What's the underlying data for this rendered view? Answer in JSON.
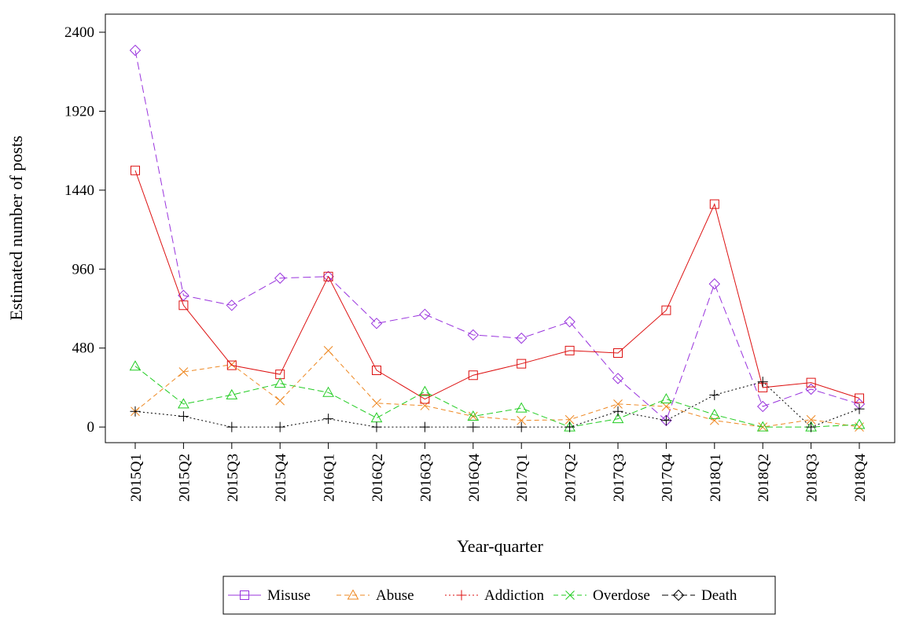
{
  "chart_data": {
    "type": "line",
    "title": "",
    "xlabel": "Year-quarter",
    "ylabel": "Estimated number of posts",
    "categories": [
      "2015Q1",
      "2015Q2",
      "2015Q3",
      "2015Q4",
      "2016Q1",
      "2016Q2",
      "2016Q3",
      "2016Q4",
      "2017Q1",
      "2017Q2",
      "2017Q3",
      "2017Q4",
      "2018Q1",
      "2018Q2",
      "2018Q3",
      "2018Q4"
    ],
    "yticks": [
      0,
      480,
      960,
      1440,
      1920,
      2400
    ],
    "ylim": [
      -95,
      2510
    ],
    "grid": false,
    "legend_position": "bottom",
    "series": [
      {
        "name": "Misuse",
        "color": "#9933dd",
        "dash": "10,5",
        "marker": "diamond",
        "values": [
          2290,
          800,
          740,
          905,
          915,
          630,
          685,
          560,
          540,
          640,
          295,
          40,
          870,
          125,
          230,
          140
        ]
      },
      {
        "name": "Abuse",
        "color": "#ee8822",
        "dash": "6,4",
        "marker": "x",
        "values": [
          95,
          335,
          380,
          160,
          465,
          145,
          130,
          65,
          40,
          45,
          140,
          125,
          40,
          0,
          45,
          0
        ]
      },
      {
        "name": "Addiction",
        "color": "#dd1111",
        "dash": "",
        "marker": "square",
        "values": [
          1560,
          740,
          375,
          320,
          915,
          345,
          170,
          315,
          385,
          465,
          450,
          710,
          1355,
          240,
          270,
          175
        ]
      },
      {
        "name": "Overdose",
        "color": "#22cc22",
        "dash": "8,4",
        "marker": "triangle",
        "values": [
          370,
          140,
          195,
          265,
          210,
          55,
          215,
          65,
          115,
          0,
          50,
          170,
          75,
          0,
          0,
          15
        ]
      },
      {
        "name": "Death",
        "color": "#000000",
        "dash": "2,3",
        "marker": "plus",
        "values": [
          95,
          65,
          0,
          0,
          50,
          0,
          0,
          0,
          0,
          0,
          95,
          40,
          195,
          275,
          0,
          110
        ]
      }
    ],
    "legend": [
      {
        "label": "Misuse",
        "color": "#9933dd",
        "dash": "",
        "marker": "square"
      },
      {
        "label": "Abuse",
        "color": "#ee8822",
        "dash": "6,4",
        "marker": "triangle"
      },
      {
        "label": "Addiction",
        "color": "#dd1111",
        "dash": "2,3",
        "marker": "plus"
      },
      {
        "label": "Overdose",
        "color": "#22cc22",
        "dash": "6,4",
        "marker": "x"
      },
      {
        "label": "Death",
        "color": "#000000",
        "dash": "8,4",
        "marker": "diamond"
      }
    ]
  }
}
